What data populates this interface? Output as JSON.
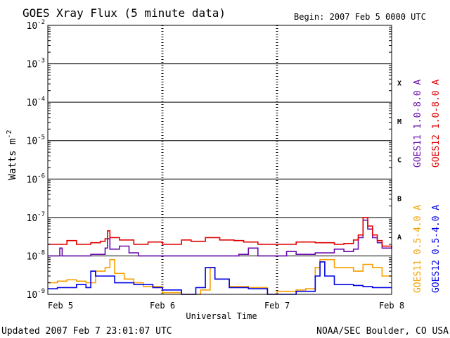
{
  "chart_data": {
    "type": "line",
    "title": "GOES Xray Flux (5 minute data)",
    "begin_label": "Begin:  2007 Feb 5 0000 UTC",
    "xlabel": "Universal Time",
    "ylabel": "Watts m",
    "ylabel_exp": "-2",
    "y_scale": "log",
    "ylim": [
      1e-09,
      0.01
    ],
    "y_ticks": [
      {
        "base": "10",
        "exp": "-2",
        "value": 0.01
      },
      {
        "base": "10",
        "exp": "-3",
        "value": 0.001
      },
      {
        "base": "10",
        "exp": "-4",
        "value": 0.0001
      },
      {
        "base": "10",
        "exp": "-5",
        "value": 1e-05
      },
      {
        "base": "10",
        "exp": "-6",
        "value": 1e-06
      },
      {
        "base": "10",
        "exp": "-7",
        "value": 1e-07
      },
      {
        "base": "10",
        "exp": "-8",
        "value": 1e-08
      },
      {
        "base": "10",
        "exp": "-9",
        "value": 1e-09
      }
    ],
    "xlim": [
      0,
      72
    ],
    "x_unit": "hours since 2007 Feb 5 0000 UTC",
    "x_ticks": [
      {
        "label": "Feb 5",
        "value": 0
      },
      {
        "label": "Feb 6",
        "value": 24
      },
      {
        "label": "Feb 7",
        "value": 48
      },
      {
        "label": "Feb 8",
        "value": 72
      }
    ],
    "flare_classes": [
      {
        "label": "X",
        "value": 0.00032
      },
      {
        "label": "M",
        "value": 3.2e-05
      },
      {
        "label": "C",
        "value": 3.2e-06
      },
      {
        "label": "B",
        "value": 3.2e-07
      },
      {
        "label": "A",
        "value": 3.2e-08
      }
    ],
    "grid": true,
    "legend_placement": "right",
    "series": [
      {
        "name": "GOES11 1.0-8.0 A",
        "color": "#6a0dad",
        "points": [
          [
            0,
            1e-08
          ],
          [
            2,
            1e-08
          ],
          [
            2.5,
            1.6e-08
          ],
          [
            3,
            1e-08
          ],
          [
            6,
            1e-08
          ],
          [
            9,
            1.1e-08
          ],
          [
            12,
            1.6e-08
          ],
          [
            12.5,
            2.8e-08
          ],
          [
            13,
            1.5e-08
          ],
          [
            15,
            1.8e-08
          ],
          [
            17,
            1.2e-08
          ],
          [
            19,
            1e-08
          ],
          [
            24,
            1e-08
          ],
          [
            30,
            1e-08
          ],
          [
            36,
            1e-08
          ],
          [
            40,
            1.1e-08
          ],
          [
            42,
            1.6e-08
          ],
          [
            44,
            1e-08
          ],
          [
            48,
            1e-08
          ],
          [
            50,
            1.3e-08
          ],
          [
            52,
            1.1e-08
          ],
          [
            56,
            1.2e-08
          ],
          [
            60,
            1.5e-08
          ],
          [
            62,
            1.3e-08
          ],
          [
            64,
            1.5e-08
          ],
          [
            65,
            3e-08
          ],
          [
            66,
            8.5e-08
          ],
          [
            67,
            5e-08
          ],
          [
            68,
            3e-08
          ],
          [
            69,
            2.2e-08
          ],
          [
            70,
            1.6e-08
          ],
          [
            72,
            1.6e-08
          ]
        ]
      },
      {
        "name": "GOES12 1.0-8.0 A",
        "color": "#e00000",
        "points": [
          [
            0,
            2e-08
          ],
          [
            3,
            2e-08
          ],
          [
            4,
            2.5e-08
          ],
          [
            6,
            2e-08
          ],
          [
            9,
            2.2e-08
          ],
          [
            11,
            2.4e-08
          ],
          [
            12,
            2.8e-08
          ],
          [
            12.5,
            4.5e-08
          ],
          [
            13,
            3e-08
          ],
          [
            15,
            2.6e-08
          ],
          [
            18,
            2e-08
          ],
          [
            21,
            2.3e-08
          ],
          [
            24,
            2e-08
          ],
          [
            28,
            2.6e-08
          ],
          [
            30,
            2.4e-08
          ],
          [
            33,
            3e-08
          ],
          [
            36,
            2.6e-08
          ],
          [
            39,
            2.5e-08
          ],
          [
            41,
            2.3e-08
          ],
          [
            44,
            2e-08
          ],
          [
            48,
            2e-08
          ],
          [
            52,
            2.3e-08
          ],
          [
            56,
            2.2e-08
          ],
          [
            60,
            2e-08
          ],
          [
            62,
            2.1e-08
          ],
          [
            64,
            2.6e-08
          ],
          [
            65,
            3.5e-08
          ],
          [
            66,
            1e-07
          ],
          [
            67,
            6e-08
          ],
          [
            68,
            3.5e-08
          ],
          [
            69,
            2.5e-08
          ],
          [
            70,
            1.8e-08
          ],
          [
            72,
            1.5e-08
          ]
        ]
      },
      {
        "name": "GOES11 0.5-4.0 A",
        "color": "#f5a000",
        "points": [
          [
            0,
            2e-09
          ],
          [
            2,
            2.2e-09
          ],
          [
            4,
            2.4e-09
          ],
          [
            6,
            2.2e-09
          ],
          [
            8,
            2e-09
          ],
          [
            10,
            4e-09
          ],
          [
            12,
            5e-09
          ],
          [
            13,
            8e-09
          ],
          [
            14,
            3.5e-09
          ],
          [
            16,
            2.5e-09
          ],
          [
            18,
            2e-09
          ],
          [
            20,
            1.6e-09
          ],
          [
            24,
            1.1e-09
          ],
          [
            28,
            1e-09
          ],
          [
            32,
            1.3e-09
          ],
          [
            34,
            5e-09
          ],
          [
            35,
            2.5e-09
          ],
          [
            38,
            1.6e-09
          ],
          [
            42,
            1.5e-09
          ],
          [
            44,
            1.5e-09
          ],
          [
            46,
            1e-09
          ],
          [
            48,
            1.2e-09
          ],
          [
            52,
            1.3e-09
          ],
          [
            54,
            1.4e-09
          ],
          [
            56,
            5e-09
          ],
          [
            57,
            8e-09
          ],
          [
            60,
            5e-09
          ],
          [
            64,
            4e-09
          ],
          [
            66,
            6e-09
          ],
          [
            68,
            5e-09
          ],
          [
            70,
            3e-09
          ],
          [
            72,
            3e-09
          ]
        ]
      },
      {
        "name": "GOES12 0.5-4.0 A",
        "color": "#0000e6",
        "points": [
          [
            0,
            1.4e-09
          ],
          [
            2,
            1.5e-09
          ],
          [
            4,
            1.5e-09
          ],
          [
            6,
            1.8e-09
          ],
          [
            8,
            1.5e-09
          ],
          [
            9,
            4e-09
          ],
          [
            10,
            3e-09
          ],
          [
            12,
            3e-09
          ],
          [
            14,
            2e-09
          ],
          [
            18,
            1.8e-09
          ],
          [
            22,
            1.5e-09
          ],
          [
            24,
            1.3e-09
          ],
          [
            28,
            1e-09
          ],
          [
            31,
            1.5e-09
          ],
          [
            33,
            5e-09
          ],
          [
            35,
            2.5e-09
          ],
          [
            38,
            1.5e-09
          ],
          [
            42,
            1.4e-09
          ],
          [
            46,
            1e-09
          ],
          [
            48,
            1e-09
          ],
          [
            52,
            1.2e-09
          ],
          [
            56,
            3e-09
          ],
          [
            57,
            7e-09
          ],
          [
            58,
            3e-09
          ],
          [
            60,
            1.8e-09
          ],
          [
            64,
            1.7e-09
          ],
          [
            66,
            1.6e-09
          ],
          [
            68,
            1.5e-09
          ],
          [
            72,
            1.5e-09
          ]
        ]
      }
    ]
  },
  "footer": {
    "updated": "Updated 2007 Feb  7 23:01:07 UTC",
    "source": "NOAA/SEC Boulder, CO USA"
  }
}
